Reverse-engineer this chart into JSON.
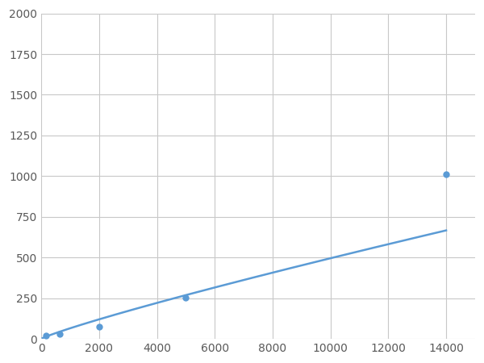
{
  "x_data": [
    156,
    625,
    2000,
    5000,
    14000
  ],
  "y_data": [
    20,
    30,
    75,
    255,
    1010
  ],
  "line_color": "#5b9bd5",
  "marker_color": "#5b9bd5",
  "marker_size": 6,
  "line_width": 1.8,
  "xlim": [
    0,
    15000
  ],
  "ylim": [
    0,
    2000
  ],
  "xticks": [
    0,
    2000,
    4000,
    6000,
    8000,
    10000,
    12000,
    14000
  ],
  "yticks": [
    0,
    250,
    500,
    750,
    1000,
    1250,
    1500,
    1750,
    2000
  ],
  "grid_color": "#c8c8c8",
  "bg_color": "#ffffff",
  "fig_bg_color": "#ffffff",
  "tick_label_color": "#595959",
  "tick_label_size": 10
}
